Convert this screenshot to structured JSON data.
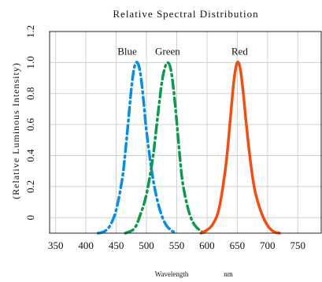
{
  "chart_data": {
    "type": "line",
    "title": "Relative Spectral Distribution",
    "ylabel": "(Relative Luminous Intensity)",
    "xlabel": "Wavelength",
    "xunit": "nm",
    "xlim": [
      340,
      790
    ],
    "ylim": [
      -0.1,
      1.2
    ],
    "x_ticks": [
      "350",
      "400",
      "450",
      "500",
      "550",
      "600",
      "650",
      "700",
      "750"
    ],
    "y_ticks": [
      "0",
      "0.2",
      "0.4",
      "0.6",
      "0.8",
      "1.0",
      "1.2"
    ],
    "grid": true,
    "series": [
      {
        "name": "Blue",
        "color": "#0a8ee0",
        "line_style": "dash-dot",
        "x": [
          420,
          430,
          440,
          450,
          460,
          465,
          470,
          475,
          480,
          485,
          490,
          495,
          500,
          510,
          520,
          530,
          540,
          550
        ],
        "y": [
          -0.1,
          -0.09,
          -0.05,
          0.05,
          0.25,
          0.42,
          0.62,
          0.83,
          0.97,
          1.0,
          0.93,
          0.76,
          0.56,
          0.27,
          0.08,
          -0.03,
          -0.08,
          -0.1
        ]
      },
      {
        "name": "Green",
        "color": "#0d9a4c",
        "line_style": "dash-dot",
        "x": [
          465,
          480,
          490,
          500,
          510,
          515,
          520,
          525,
          530,
          535,
          540,
          545,
          550,
          555,
          560,
          570,
          580,
          595
        ],
        "y": [
          -0.1,
          -0.07,
          0.02,
          0.15,
          0.37,
          0.53,
          0.7,
          0.86,
          0.96,
          1.0,
          0.96,
          0.82,
          0.62,
          0.4,
          0.22,
          0.04,
          -0.05,
          -0.1
        ]
      },
      {
        "name": "Red",
        "color": "#f04e12",
        "line_style": "solid",
        "x": [
          590,
          600,
          610,
          620,
          630,
          635,
          640,
          645,
          650,
          655,
          660,
          665,
          670,
          675,
          680,
          690,
          700,
          710,
          720
        ],
        "y": [
          -0.1,
          -0.08,
          -0.04,
          0.06,
          0.3,
          0.48,
          0.7,
          0.9,
          1.0,
          0.96,
          0.8,
          0.6,
          0.42,
          0.27,
          0.16,
          0.03,
          -0.05,
          -0.09,
          -0.1
        ]
      }
    ]
  }
}
